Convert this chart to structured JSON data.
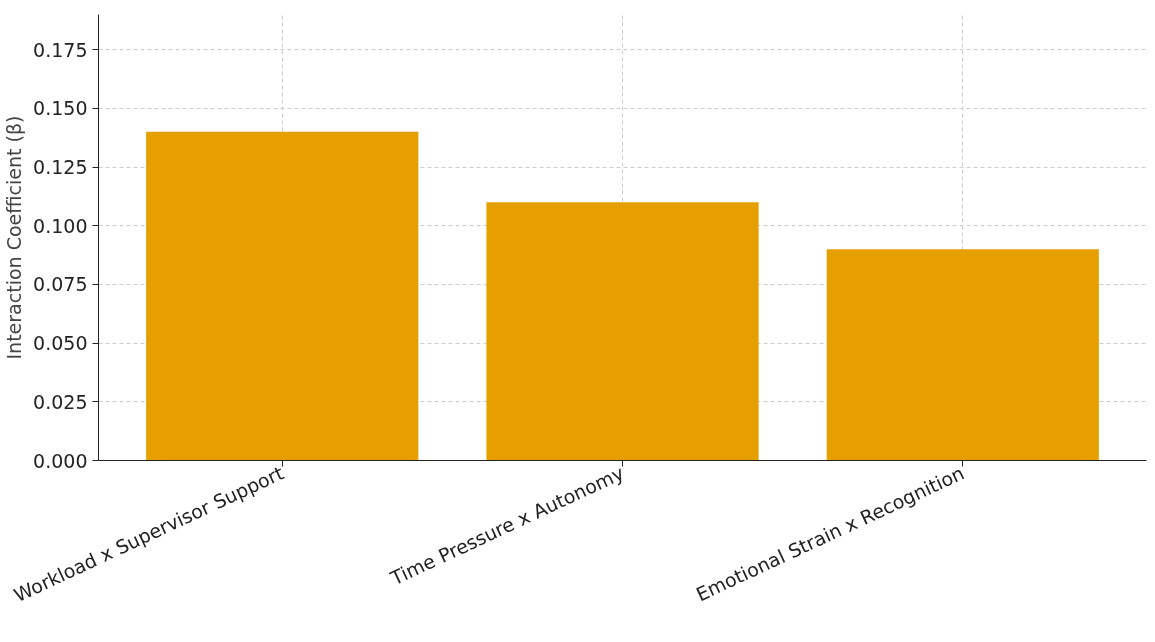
{
  "chart_data": {
    "type": "bar",
    "ylabel": "Interaction Coefficient (β)",
    "categories": [
      "Workload x Supervisor Support",
      "Time Pressure x Autonomy",
      "Emotional Strain x Recognition"
    ],
    "values": [
      0.14,
      0.11,
      0.09
    ],
    "color": "#e5a000",
    "ylim": [
      0,
      0.19
    ],
    "yticks": [
      {
        "value": 0,
        "label": "0.000"
      },
      {
        "value": 0.025,
        "label": "0.025"
      },
      {
        "value": 0.05,
        "label": "0.050"
      },
      {
        "value": 0.075,
        "label": "0.075"
      },
      {
        "value": 0.1,
        "label": "0.100"
      },
      {
        "value": 0.125,
        "label": "0.125"
      },
      {
        "value": 0.15,
        "label": "0.150"
      },
      {
        "value": 0.175,
        "label": "0.175"
      }
    ],
    "grid": true
  }
}
